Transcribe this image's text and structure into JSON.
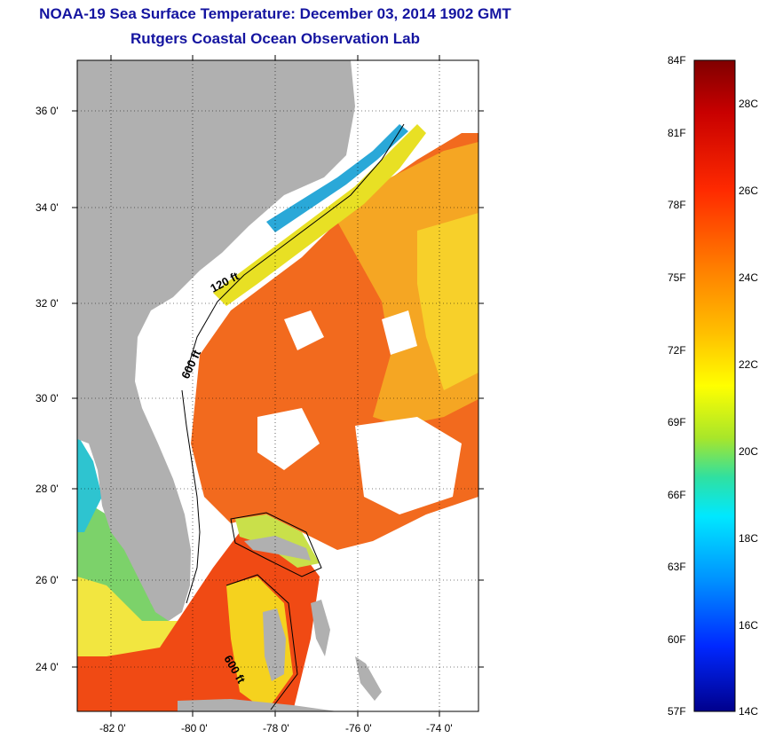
{
  "title": {
    "line1": "NOAA-19 Sea Surface Temperature:  December 03, 2014 1902 GMT",
    "line2": "Rutgers Coastal Ocean Observation Lab"
  },
  "axes": {
    "lat_labels": [
      "36 0'",
      "34 0'",
      "32 0'",
      "30 0'",
      "28 0'",
      "26 0'",
      "24 0'"
    ],
    "lon_labels": [
      "-82 0'",
      "-80 0'",
      "-78 0'",
      "-76 0'",
      "-74 0'"
    ]
  },
  "isobaths": {
    "label_120": "120 ft",
    "label_600_north": "600 ft",
    "label_600_south": "600 ft"
  },
  "colorbar": {
    "fahrenheit": [
      "84F",
      "81F",
      "78F",
      "75F",
      "72F",
      "69F",
      "66F",
      "63F",
      "60F",
      "57F"
    ],
    "celsius": [
      "28C",
      "26C",
      "24C",
      "22C",
      "20C",
      "18C",
      "16C",
      "14C"
    ]
  },
  "colors": {
    "land": "#b0b0b0",
    "title": "#1414a0",
    "ocean_warm": "#f26a1e",
    "ocean_mid": "#f5a623",
    "shelf_cool": "#e8e024",
    "nearshore_cold": "#2aa8d8"
  }
}
